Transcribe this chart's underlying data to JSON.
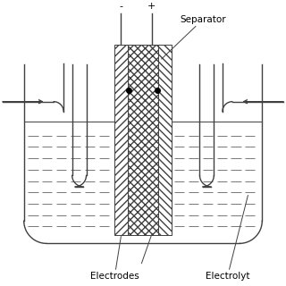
{
  "bg_color": "#ffffff",
  "line_color": "#404040",
  "label_separator": "Separator",
  "label_electrodes": "Electrodes",
  "label_electrolyte": "Electrolyt",
  "label_minus": "-",
  "label_plus": "+",
  "fig_width": 3.2,
  "fig_height": 3.2,
  "dpi": 100
}
